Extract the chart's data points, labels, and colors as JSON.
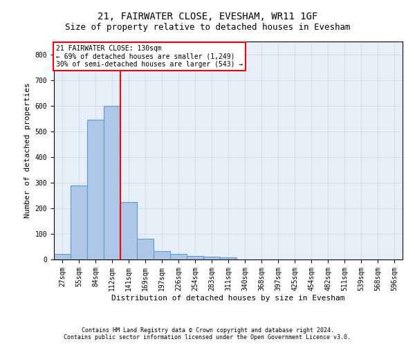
{
  "title": "21, FAIRWATER CLOSE, EVESHAM, WR11 1GF",
  "subtitle": "Size of property relative to detached houses in Evesham",
  "xlabel": "Distribution of detached houses by size in Evesham",
  "ylabel": "Number of detached properties",
  "footer_line1": "Contains HM Land Registry data © Crown copyright and database right 2024.",
  "footer_line2": "Contains public sector information licensed under the Open Government Licence v3.0.",
  "bar_labels": [
    "27sqm",
    "55sqm",
    "84sqm",
    "112sqm",
    "141sqm",
    "169sqm",
    "197sqm",
    "226sqm",
    "254sqm",
    "283sqm",
    "311sqm",
    "340sqm",
    "368sqm",
    "397sqm",
    "425sqm",
    "454sqm",
    "482sqm",
    "511sqm",
    "539sqm",
    "568sqm",
    "596sqm"
  ],
  "bar_values": [
    22,
    290,
    545,
    600,
    225,
    80,
    33,
    22,
    13,
    10,
    7,
    0,
    0,
    0,
    0,
    0,
    0,
    0,
    0,
    0,
    0
  ],
  "bar_color": "#aec6e8",
  "bar_edge_color": "#5b9bd5",
  "ylim": [
    0,
    850
  ],
  "yticks": [
    0,
    100,
    200,
    300,
    400,
    500,
    600,
    700,
    800
  ],
  "grid_color": "#d0d8e8",
  "bg_color": "#e8eef8",
  "annotation_box_text_line1": "21 FAIRWATER CLOSE: 130sqm",
  "annotation_box_text_line2": "← 69% of detached houses are smaller (1,249)",
  "annotation_box_text_line3": "30% of semi-detached houses are larger (543) →",
  "red_line_x": 3.5,
  "annotation_box_color": "white",
  "annotation_box_edge_color": "red",
  "red_line_color": "red",
  "title_fontsize": 10,
  "subtitle_fontsize": 9,
  "tick_fontsize": 7,
  "ylabel_fontsize": 8,
  "xlabel_fontsize": 8,
  "footer_fontsize": 6,
  "annot_fontsize": 7
}
